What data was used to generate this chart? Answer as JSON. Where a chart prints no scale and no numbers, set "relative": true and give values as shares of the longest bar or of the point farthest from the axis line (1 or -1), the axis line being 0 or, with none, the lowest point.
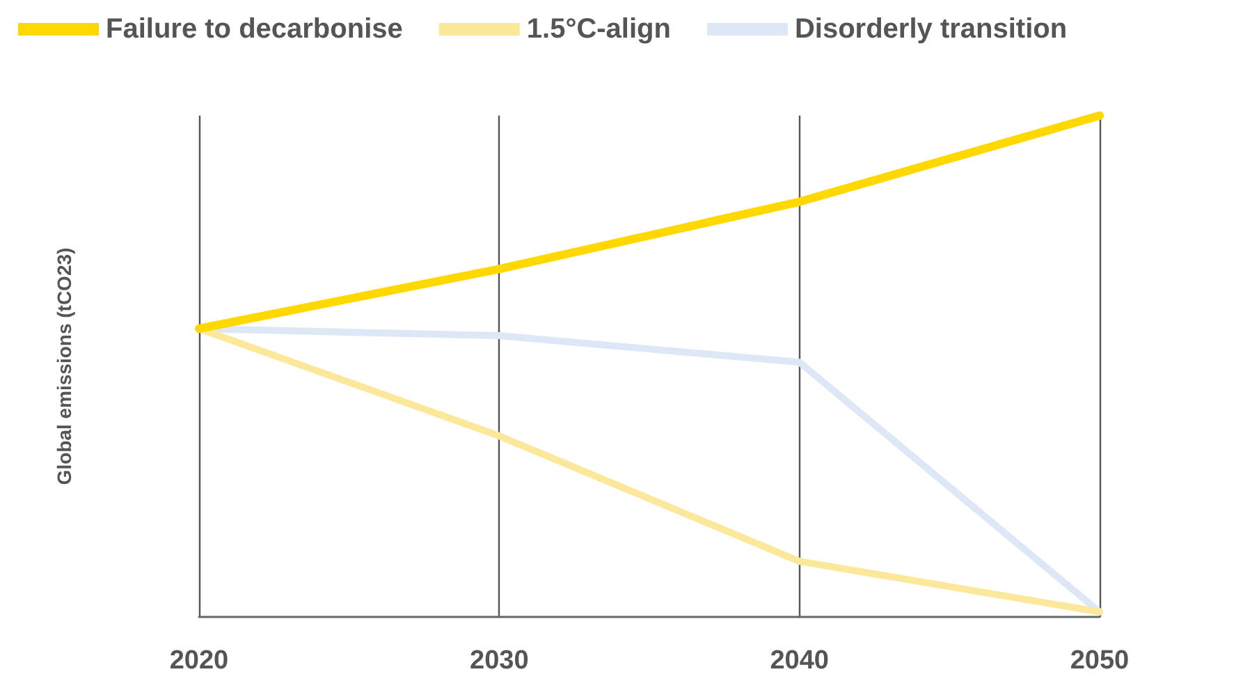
{
  "chart_data": {
    "type": "line",
    "relative": true,
    "ylabel": "Global emissions (tCO23)",
    "categories": [
      "2020",
      "2030",
      "2040",
      "2050"
    ],
    "series": [
      {
        "name": "Failure to decarbonise",
        "color": "#ffd800",
        "values": [
          0.575,
          0.694,
          0.828,
          1
        ]
      },
      {
        "name": "1.5°C-align",
        "color": "#fbe89a",
        "values": [
          0.575,
          0.361,
          0.111,
          0.01
        ]
      },
      {
        "name": "Disorderly transition",
        "color": "#dde7f6",
        "values": [
          0.575,
          0.561,
          0.508,
          0.01
        ]
      }
    ],
    "grid": "x",
    "legend": "top left",
    "marker": "none",
    "line_style": "solid"
  }
}
